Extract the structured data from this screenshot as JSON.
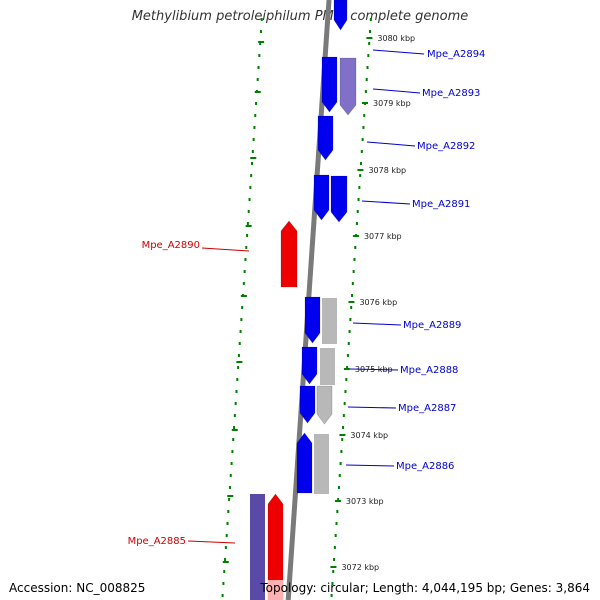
{
  "title": "Methylibium petroleiphilum PM1, complete genome",
  "accession_text": "Accession: NC_008825",
  "topology_text": "Topology: circular; Length: 4,044,195 bp; Genes: 3,864",
  "colors": {
    "forward_gene": "#0000ee",
    "forward_rna": "#8070c8",
    "reverse_gene": "#ee0000",
    "reverse_rna": "#ffb0b0",
    "pseudo": "#b8b8b8",
    "backbone": "#7a7a7a",
    "dots": "#008000",
    "label_blue": "#0000cc",
    "label_red": "#cc0000"
  },
  "ticks": [
    {
      "label": "3080 kbp"
    },
    {
      "label": "3079 kbp"
    },
    {
      "label": "3078 kbp"
    },
    {
      "label": "3077 kbp"
    },
    {
      "label": "3076 kbp"
    },
    {
      "label": "3075 kbp"
    },
    {
      "label": "3074 kbp"
    },
    {
      "label": "3073 kbp"
    },
    {
      "label": "3072 kbp"
    }
  ],
  "gene_labels": [
    {
      "text": "Mpe_A2894",
      "color": "label_blue"
    },
    {
      "text": "Mpe_A2893",
      "color": "label_blue"
    },
    {
      "text": "Mpe_A2892",
      "color": "label_blue"
    },
    {
      "text": "Mpe_A2891",
      "color": "label_blue"
    },
    {
      "text": "Mpe_A2890",
      "color": "label_red"
    },
    {
      "text": "Mpe_A2889",
      "color": "label_blue"
    },
    {
      "text": "Mpe_A2888",
      "color": "label_blue"
    },
    {
      "text": "Mpe_A2887",
      "color": "label_blue"
    },
    {
      "text": "Mpe_A2886",
      "color": "label_blue"
    },
    {
      "text": "Mpe_A2885",
      "color": "label_red"
    }
  ]
}
